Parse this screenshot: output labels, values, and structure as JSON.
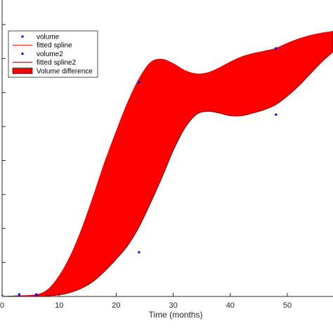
{
  "chart_data": {
    "type": "area",
    "xlabel": "Time (months)",
    "ylabel": "",
    "title": "",
    "xlim": [
      0,
      58
    ],
    "ylim": [
      0,
      8
    ],
    "x_ticks": [
      0,
      10,
      20,
      30,
      40,
      50
    ],
    "y_ticks": [
      0,
      1,
      2,
      3,
      4,
      5,
      6,
      7,
      8
    ],
    "grid": false,
    "legend_position": "top-left",
    "legend": [
      {
        "label": "volume",
        "kind": "marker",
        "color": "#0000ff"
      },
      {
        "label": "fitted spline",
        "kind": "line",
        "color": "#ff0000"
      },
      {
        "label": "volume2",
        "kind": "marker",
        "color": "#0000ff"
      },
      {
        "label": "fitted spline2",
        "kind": "line",
        "color": "#8b0000"
      },
      {
        "label": "Volume difference",
        "kind": "patch",
        "color": "#ff0000"
      }
    ],
    "series": [
      {
        "name": "volume",
        "kind": "scatter",
        "color": "#0000ff",
        "x": [
          0,
          3,
          6,
          24,
          48
        ],
        "y": [
          0.02,
          0.06,
          0.06,
          6.3,
          7.3
        ]
      },
      {
        "name": "volume2",
        "kind": "scatter",
        "color": "#0000ff",
        "x": [
          0,
          3,
          6,
          24,
          48
        ],
        "y": [
          0.0,
          0.0,
          0.03,
          1.3,
          5.35
        ]
      },
      {
        "name": "fitted spline",
        "kind": "line",
        "color": "#ff0000",
        "x": [
          0,
          3,
          6,
          8,
          10,
          12,
          14,
          16,
          18,
          20,
          22,
          24,
          26,
          28,
          30,
          32,
          34,
          36,
          38,
          40,
          42,
          44,
          46,
          48,
          50,
          52,
          54,
          56,
          58
        ],
        "y": [
          0.0,
          0.02,
          0.05,
          0.2,
          0.6,
          1.2,
          2.0,
          2.95,
          3.95,
          4.85,
          5.7,
          6.4,
          6.88,
          6.98,
          6.85,
          6.65,
          6.55,
          6.58,
          6.72,
          6.9,
          7.05,
          7.15,
          7.22,
          7.3,
          7.45,
          7.58,
          7.68,
          7.75,
          7.8
        ]
      },
      {
        "name": "fitted spline2",
        "kind": "line",
        "color": "#8b0000",
        "x": [
          0,
          3,
          6,
          8,
          10,
          12,
          14,
          16,
          18,
          20,
          22,
          24,
          26,
          28,
          30,
          32,
          34,
          36,
          38,
          40,
          42,
          44,
          46,
          48,
          50,
          52,
          54,
          56,
          58
        ],
        "y": [
          0.0,
          0.0,
          0.0,
          0.02,
          0.05,
          0.12,
          0.25,
          0.45,
          0.75,
          1.1,
          1.5,
          2.05,
          2.75,
          3.5,
          4.3,
          4.95,
          5.35,
          5.45,
          5.4,
          5.32,
          5.32,
          5.4,
          5.5,
          5.65,
          5.9,
          6.2,
          6.55,
          6.9,
          7.2
        ]
      }
    ]
  }
}
